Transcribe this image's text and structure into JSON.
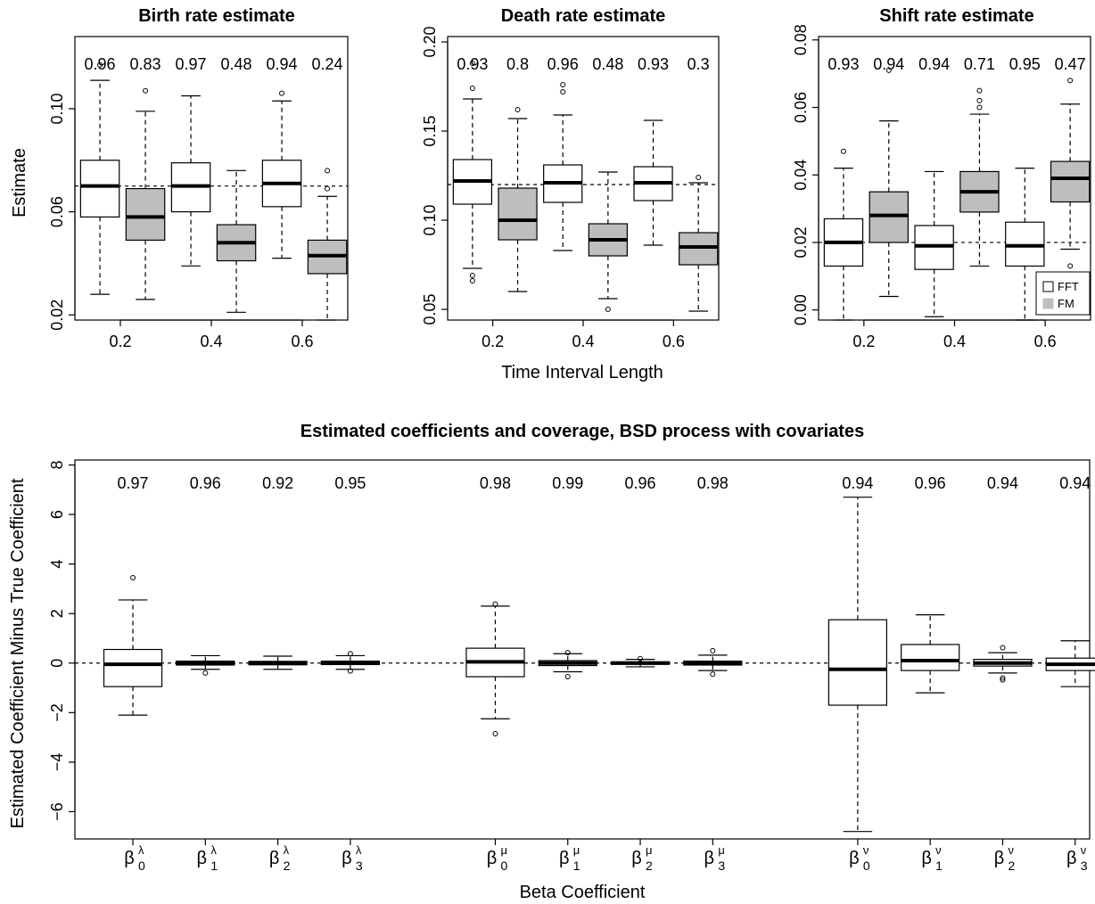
{
  "chart_data": [
    {
      "type": "box",
      "title": "Birth rate estimate",
      "ylabel": "Estimate",
      "xlabel": "",
      "ylim": [
        0.018,
        0.128
      ],
      "yticks": [
        0.02,
        0.06,
        0.1
      ],
      "ytick_labels": [
        "0.02",
        "0.06",
        "0.10"
      ],
      "xlim": [
        0.1,
        0.7
      ],
      "xticks": [
        0.2,
        0.4,
        0.6
      ],
      "xtick_labels": [
        "0.2",
        "0.4",
        "0.6"
      ],
      "reference_line": 0.07,
      "box_width": 0.085,
      "boxes": [
        {
          "x": 0.155,
          "group": "FFT",
          "min": 0.028,
          "q1": 0.058,
          "median": 0.07,
          "q3": 0.08,
          "max": 0.111,
          "outliers": [
            0.117
          ],
          "coverage": "0.96"
        },
        {
          "x": 0.255,
          "group": "FM",
          "min": 0.026,
          "q1": 0.049,
          "median": 0.058,
          "q3": 0.069,
          "max": 0.099,
          "outliers": [
            0.107
          ],
          "coverage": "0.83"
        },
        {
          "x": 0.355,
          "group": "FFT",
          "min": 0.039,
          "q1": 0.06,
          "median": 0.07,
          "q3": 0.079,
          "max": 0.105,
          "outliers": [],
          "coverage": "0.97"
        },
        {
          "x": 0.455,
          "group": "FM",
          "min": 0.021,
          "q1": 0.041,
          "median": 0.048,
          "q3": 0.055,
          "max": 0.076,
          "outliers": [],
          "coverage": "0.48"
        },
        {
          "x": 0.555,
          "group": "FFT",
          "min": 0.042,
          "q1": 0.062,
          "median": 0.071,
          "q3": 0.08,
          "max": 0.103,
          "outliers": [
            0.106
          ],
          "coverage": "0.94"
        },
        {
          "x": 0.655,
          "group": "FM",
          "min": 0.018,
          "q1": 0.036,
          "median": 0.043,
          "q3": 0.049,
          "max": 0.066,
          "outliers": [
            0.069,
            0.076
          ],
          "coverage": "0.24"
        }
      ]
    },
    {
      "type": "box",
      "title": "Death rate estimate",
      "ylabel": "",
      "xlabel": "Time Interval Length",
      "ylim": [
        0.044,
        0.203
      ],
      "yticks": [
        0.05,
        0.1,
        0.15,
        0.2
      ],
      "ytick_labels": [
        "0.05",
        "0.10",
        "0.15",
        "0.20"
      ],
      "xlim": [
        0.1,
        0.7
      ],
      "xticks": [
        0.2,
        0.4,
        0.6
      ],
      "xtick_labels": [
        "0.2",
        "0.4",
        "0.6"
      ],
      "reference_line": 0.12,
      "box_width": 0.085,
      "boxes": [
        {
          "x": 0.155,
          "group": "FFT",
          "min": 0.073,
          "q1": 0.109,
          "median": 0.122,
          "q3": 0.134,
          "max": 0.168,
          "outliers": [
            0.066,
            0.069,
            0.174,
            0.188
          ],
          "coverage": "0.93"
        },
        {
          "x": 0.255,
          "group": "FM",
          "min": 0.06,
          "q1": 0.089,
          "median": 0.1,
          "q3": 0.118,
          "max": 0.157,
          "outliers": [
            0.162
          ],
          "coverage": "0.8"
        },
        {
          "x": 0.355,
          "group": "FFT",
          "min": 0.083,
          "q1": 0.11,
          "median": 0.121,
          "q3": 0.131,
          "max": 0.159,
          "outliers": [
            0.172,
            0.176
          ],
          "coverage": "0.96"
        },
        {
          "x": 0.455,
          "group": "FM",
          "min": 0.056,
          "q1": 0.08,
          "median": 0.089,
          "q3": 0.098,
          "max": 0.127,
          "outliers": [
            0.05
          ],
          "coverage": "0.48"
        },
        {
          "x": 0.555,
          "group": "FFT",
          "min": 0.086,
          "q1": 0.111,
          "median": 0.121,
          "q3": 0.13,
          "max": 0.156,
          "outliers": [],
          "coverage": "0.93"
        },
        {
          "x": 0.655,
          "group": "FM",
          "min": 0.049,
          "q1": 0.075,
          "median": 0.085,
          "q3": 0.093,
          "max": 0.121,
          "outliers": [
            0.124
          ],
          "coverage": "0.3"
        }
      ]
    },
    {
      "type": "box",
      "title": "Shift rate estimate",
      "ylabel": "",
      "xlabel": "",
      "ylim": [
        -0.003,
        0.081
      ],
      "yticks": [
        0.0,
        0.02,
        0.04,
        0.06,
        0.08
      ],
      "ytick_labels": [
        "0.00",
        "0.02",
        "0.04",
        "0.06",
        "0.08"
      ],
      "xlim": [
        0.1,
        0.7
      ],
      "xticks": [
        0.2,
        0.4,
        0.6
      ],
      "xtick_labels": [
        "0.2",
        "0.4",
        "0.6"
      ],
      "reference_line": 0.02,
      "box_width": 0.085,
      "legend": {
        "position": "bottom-right",
        "entries": [
          {
            "label": "FFT",
            "color": "#ffffff"
          },
          {
            "label": "FM",
            "color": "#bebebe"
          }
        ]
      },
      "boxes": [
        {
          "x": 0.155,
          "group": "FFT",
          "min": -0.003,
          "q1": 0.013,
          "median": 0.02,
          "q3": 0.027,
          "max": 0.042,
          "outliers": [
            0.047
          ],
          "coverage": "0.93"
        },
        {
          "x": 0.255,
          "group": "FM",
          "min": 0.004,
          "q1": 0.02,
          "median": 0.028,
          "q3": 0.035,
          "max": 0.056,
          "outliers": [
            0.071
          ],
          "coverage": "0.94"
        },
        {
          "x": 0.355,
          "group": "FFT",
          "min": -0.002,
          "q1": 0.012,
          "median": 0.019,
          "q3": 0.025,
          "max": 0.041,
          "outliers": [],
          "coverage": "0.94"
        },
        {
          "x": 0.455,
          "group": "FM",
          "min": 0.013,
          "q1": 0.029,
          "median": 0.035,
          "q3": 0.041,
          "max": 0.058,
          "outliers": [
            0.06,
            0.062,
            0.065
          ],
          "coverage": "0.71"
        },
        {
          "x": 0.555,
          "group": "FFT",
          "min": -0.003,
          "q1": 0.013,
          "median": 0.019,
          "q3": 0.026,
          "max": 0.042,
          "outliers": [],
          "coverage": "0.95"
        },
        {
          "x": 0.655,
          "group": "FM",
          "min": 0.018,
          "q1": 0.032,
          "median": 0.039,
          "q3": 0.044,
          "max": 0.061,
          "outliers": [
            0.013,
            0.068
          ],
          "coverage": "0.47"
        }
      ]
    },
    {
      "type": "box",
      "title": "Estimated coefficients and coverage, BSD process with covariates",
      "ylabel": "Estimated Coefficient Minus True Coefficient",
      "xlabel": "Beta Coefficient",
      "ylim": [
        -7.1,
        8.2
      ],
      "yticks": [
        -6,
        -4,
        -2,
        0,
        2,
        4,
        6,
        8
      ],
      "ytick_labels": [
        "−6",
        "−4",
        "−2",
        "0",
        "2",
        "4",
        "6",
        "8"
      ],
      "xlim": [
        0.2,
        14.2
      ],
      "reference_line": 0,
      "box_width": 0.8,
      "boxes": [
        {
          "x": 1,
          "label_base": "β",
          "label_sub": "0",
          "label_sup": "λ",
          "group": "FFT",
          "min": -2.1,
          "q1": -0.95,
          "median": -0.05,
          "q3": 0.55,
          "max": 2.55,
          "outliers": [
            3.45
          ],
          "coverage": "0.97"
        },
        {
          "x": 2,
          "label_base": "β",
          "label_sub": "1",
          "label_sup": "λ",
          "group": "FFT",
          "min": -0.25,
          "q1": -0.08,
          "median": 0.0,
          "q3": 0.08,
          "max": 0.3,
          "outliers": [
            -0.4
          ],
          "coverage": "0.96"
        },
        {
          "x": 3,
          "label_base": "β",
          "label_sub": "2",
          "label_sup": "λ",
          "group": "FFT",
          "min": -0.25,
          "q1": -0.07,
          "median": 0.0,
          "q3": 0.07,
          "max": 0.28,
          "outliers": [],
          "coverage": "0.92"
        },
        {
          "x": 4,
          "label_base": "β",
          "label_sub": "3",
          "label_sup": "λ",
          "group": "FFT",
          "min": -0.25,
          "q1": -0.06,
          "median": 0.02,
          "q3": 0.08,
          "max": 0.3,
          "outliers": [
            -0.32,
            0.38
          ],
          "coverage": "0.95"
        },
        {
          "x": 6,
          "label_base": "β",
          "label_sub": "0",
          "label_sup": "μ",
          "group": "FFT",
          "min": -2.25,
          "q1": -0.55,
          "median": 0.05,
          "q3": 0.6,
          "max": 2.3,
          "outliers": [
            -2.85,
            2.38
          ],
          "coverage": "0.98"
        },
        {
          "x": 7,
          "label_base": "β",
          "label_sub": "1",
          "label_sup": "μ",
          "group": "FFT",
          "min": -0.35,
          "q1": -0.1,
          "median": 0.0,
          "q3": 0.1,
          "max": 0.38,
          "outliers": [
            -0.55,
            0.42
          ],
          "coverage": "0.99"
        },
        {
          "x": 8,
          "label_base": "β",
          "label_sub": "2",
          "label_sup": "μ",
          "group": "FFT",
          "min": -0.15,
          "q1": -0.05,
          "median": 0.0,
          "q3": 0.05,
          "max": 0.15,
          "outliers": [
            0.18
          ],
          "coverage": "0.96"
        },
        {
          "x": 9,
          "label_base": "β",
          "label_sub": "3",
          "label_sup": "μ",
          "group": "FFT",
          "min": -0.3,
          "q1": -0.08,
          "median": 0.0,
          "q3": 0.08,
          "max": 0.32,
          "outliers": [
            -0.45,
            0.5
          ],
          "coverage": "0.98"
        },
        {
          "x": 11,
          "label_base": "β",
          "label_sub": "0",
          "label_sup": "ν",
          "group": "FFT",
          "min": -6.8,
          "q1": -1.7,
          "median": -0.25,
          "q3": 1.75,
          "max": 6.7,
          "outliers": [],
          "coverage": "0.94"
        },
        {
          "x": 12,
          "label_base": "β",
          "label_sub": "1",
          "label_sup": "ν",
          "group": "FFT",
          "min": -1.2,
          "q1": -0.3,
          "median": 0.1,
          "q3": 0.75,
          "max": 1.95,
          "outliers": [],
          "coverage": "0.96"
        },
        {
          "x": 13,
          "label_base": "β",
          "label_sub": "2",
          "label_sup": "ν",
          "group": "FFT",
          "min": -0.4,
          "q1": -0.12,
          "median": 0.0,
          "q3": 0.15,
          "max": 0.42,
          "outliers": [
            -0.6,
            -0.68,
            0.62
          ],
          "coverage": "0.94"
        },
        {
          "x": 14,
          "label_base": "β",
          "label_sub": "3",
          "label_sup": "ν",
          "group": "FFT",
          "min": -0.95,
          "q1": -0.3,
          "median": -0.05,
          "q3": 0.2,
          "max": 0.9,
          "outliers": [],
          "coverage": "0.94"
        }
      ]
    }
  ],
  "colors": {
    "FFT": "#ffffff",
    "FM": "#bebebe",
    "line": "#000000"
  }
}
